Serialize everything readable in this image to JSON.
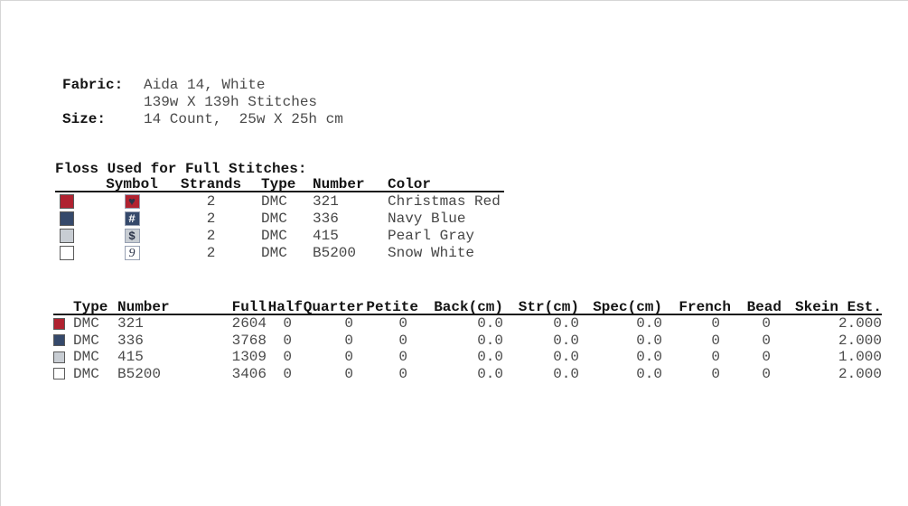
{
  "info": {
    "fabric_label": "Fabric:",
    "fabric_value": "Aida 14, White",
    "stitch_count": "139w X 139h Stitches",
    "size_label": "Size:",
    "size_value": "14 Count,  25w X 25h cm"
  },
  "floss_table": {
    "title": "Floss Used for Full Stitches:",
    "headers": {
      "symbol": "Symbol",
      "strands": "Strands",
      "type": "Type",
      "number": "Number",
      "color": "Color"
    },
    "rows": [
      {
        "swatch_color": "#b02230",
        "symbol": "♥",
        "symbol_bg": "#b02230",
        "symbol_fg": "#2b3349",
        "symbol_italic": false,
        "strands": "2",
        "type": "DMC",
        "number": "321",
        "color": "Christmas Red"
      },
      {
        "swatch_color": "#35496b",
        "symbol": "#",
        "symbol_bg": "#35496b",
        "symbol_fg": "#ffffff",
        "symbol_italic": false,
        "strands": "2",
        "type": "DMC",
        "number": "336",
        "color": "Navy Blue"
      },
      {
        "swatch_color": "#c8cdd3",
        "symbol": "$",
        "symbol_bg": "#c8cdd3",
        "symbol_fg": "#2b3349",
        "symbol_italic": false,
        "strands": "2",
        "type": "DMC",
        "number": "415",
        "color": "Pearl Gray"
      },
      {
        "swatch_color": "#ffffff",
        "symbol": "9",
        "symbol_bg": "#ffffff",
        "symbol_fg": "#2b3349",
        "symbol_italic": true,
        "strands": "2",
        "type": "DMC",
        "number": "B5200",
        "color": "Snow White"
      }
    ]
  },
  "usage_table": {
    "headers": [
      "Type",
      "Number",
      "Full",
      "Half",
      "Quarter",
      "Petite",
      "Back(cm)",
      "Str(cm)",
      "Spec(cm)",
      "French",
      "Bead",
      "Skein Est."
    ],
    "rows": [
      {
        "swatch_color": "#b02230",
        "cells": [
          "DMC",
          "321",
          "2604",
          "0",
          "0",
          "0",
          "0.0",
          "0.0",
          "0.0",
          "0",
          "0",
          "2.000"
        ]
      },
      {
        "swatch_color": "#35496b",
        "cells": [
          "DMC",
          "336",
          "3768",
          "0",
          "0",
          "0",
          "0.0",
          "0.0",
          "0.0",
          "0",
          "0",
          "2.000"
        ]
      },
      {
        "swatch_color": "#c8cdd3",
        "cells": [
          "DMC",
          "415",
          "1309",
          "0",
          "0",
          "0",
          "0.0",
          "0.0",
          "0.0",
          "0",
          "0",
          "1.000"
        ]
      },
      {
        "swatch_color": "#ffffff",
        "cells": [
          "DMC",
          "B5200",
          "3406",
          "0",
          "0",
          "0",
          "0.0",
          "0.0",
          "0.0",
          "0",
          "0",
          "2.000"
        ]
      }
    ]
  }
}
